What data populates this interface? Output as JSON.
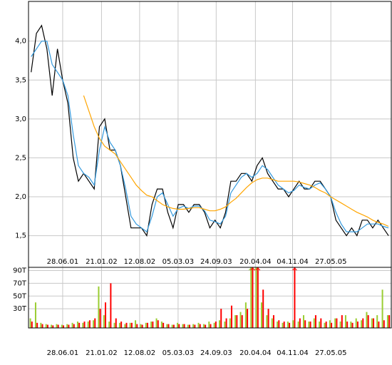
{
  "chart_data": [
    {
      "type": "line",
      "x": [
        "11.01.01",
        "08.02.01",
        "08.03.01",
        "05.04.01",
        "03.05.01",
        "31.05.01",
        "28.06.01",
        "26.07.01",
        "23.08.01",
        "20.09.01",
        "18.10.01",
        "15.11.01",
        "13.12.01",
        "10.01.02",
        "07.02.02",
        "07.03.02",
        "04.04.02",
        "02.05.02",
        "30.05.02",
        "27.06.02",
        "25.07.02",
        "22.08.02",
        "19.09.02",
        "17.10.02",
        "14.11.02",
        "12.12.02",
        "09.01.03",
        "06.02.03",
        "06.03.03",
        "03.04.03",
        "01.05.03",
        "29.05.03",
        "26.06.03",
        "24.07.03",
        "21.08.03",
        "18.09.03",
        "16.10.03",
        "13.11.03",
        "11.12.03",
        "08.01.04",
        "05.02.04",
        "04.03.04",
        "01.04.04",
        "29.04.04",
        "27.05.04",
        "24.06.04",
        "22.07.04",
        "19.08.04",
        "16.09.04",
        "14.10.04",
        "11.11.04",
        "09.12.04",
        "06.01.05",
        "03.02.05",
        "03.03.05",
        "31.03.05",
        "28.04.05",
        "26.05.05",
        "23.06.05",
        "21.07.05",
        "18.08.05",
        "15.09.05",
        "13.10.05",
        "10.11.05",
        "08.12.05",
        "05.01.06",
        "02.02.06",
        "02.03.06",
        "30.03.06"
      ],
      "series": [
        {
          "color": "#000000",
          "values": [
            3.6,
            4.1,
            4.2,
            3.9,
            3.3,
            3.9,
            3.5,
            3.2,
            2.5,
            2.2,
            2.3,
            2.2,
            2.1,
            2.9,
            3.0,
            2.6,
            2.6,
            2.4,
            2.0,
            1.6,
            1.6,
            1.6,
            1.5,
            1.9,
            2.1,
            2.1,
            1.8,
            1.6,
            1.9,
            1.9,
            1.8,
            1.9,
            1.9,
            1.8,
            1.6,
            1.7,
            1.6,
            1.8,
            2.2,
            2.2,
            2.3,
            2.3,
            2.2,
            2.4,
            2.5,
            2.3,
            2.2,
            2.1,
            2.1,
            2.0,
            2.1,
            2.2,
            2.1,
            2.1,
            2.2,
            2.2,
            2.1,
            2.0,
            1.7,
            1.6,
            1.5,
            1.6,
            1.5,
            1.7,
            1.7,
            1.6,
            1.7,
            1.6,
            1.5
          ]
        },
        {
          "color": "#3399dd",
          "values": [
            3.8,
            3.9,
            4.0,
            4.0,
            3.7,
            3.6,
            3.5,
            3.3,
            2.8,
            2.4,
            2.3,
            2.25,
            2.15,
            2.6,
            2.9,
            2.7,
            2.6,
            2.4,
            2.1,
            1.75,
            1.65,
            1.6,
            1.55,
            1.75,
            2.0,
            2.05,
            1.9,
            1.75,
            1.85,
            1.88,
            1.85,
            1.88,
            1.88,
            1.82,
            1.7,
            1.68,
            1.65,
            1.75,
            2.05,
            2.15,
            2.25,
            2.3,
            2.25,
            2.3,
            2.4,
            2.35,
            2.25,
            2.15,
            2.1,
            2.05,
            2.08,
            2.15,
            2.12,
            2.1,
            2.15,
            2.18,
            2.1,
            2.0,
            1.8,
            1.65,
            1.55,
            1.55,
            1.55,
            1.6,
            1.65,
            1.65,
            1.65,
            1.62,
            1.6
          ]
        },
        {
          "color": "#ffa500",
          "values": [
            null,
            null,
            null,
            null,
            null,
            null,
            null,
            null,
            null,
            null,
            3.3,
            3.1,
            2.9,
            2.75,
            2.65,
            2.6,
            2.55,
            2.45,
            2.35,
            2.25,
            2.15,
            2.08,
            2.02,
            2.0,
            1.95,
            1.9,
            1.87,
            1.85,
            1.84,
            1.84,
            1.85,
            1.86,
            1.86,
            1.84,
            1.82,
            1.82,
            1.84,
            1.87,
            1.93,
            1.98,
            2.05,
            2.12,
            2.18,
            2.22,
            2.24,
            2.24,
            2.22,
            2.2,
            2.2,
            2.2,
            2.2,
            2.19,
            2.17,
            2.15,
            2.12,
            2.08,
            2.05,
            2.0,
            1.96,
            1.92,
            1.88,
            1.84,
            1.8,
            1.77,
            1.74,
            1.7,
            1.67,
            1.65,
            1.62
          ]
        }
      ],
      "xlim": [
        "28.12.00",
        "14.04.06"
      ],
      "xticks": [
        "28.06.01",
        "21.01.02",
        "12.08.02",
        "05.03.03",
        "24.09.03",
        "20.04.04",
        "04.11.04",
        "27.05.05"
      ],
      "ylim": [
        1.02,
        4.51
      ],
      "yticks": [
        {
          "value": 1.5,
          "label": "1,5"
        },
        {
          "value": 2,
          "label": "2,0"
        },
        {
          "value": 2.5,
          "label": "2,5"
        },
        {
          "value": 3,
          "label": "3,0"
        },
        {
          "value": 3.5,
          "label": "3,5"
        },
        {
          "value": 4,
          "label": "4,0"
        }
      ],
      "grid": true
    },
    {
      "type": "bar",
      "x": [
        "11.01.01",
        "08.02.01",
        "08.03.01",
        "05.04.01",
        "03.05.01",
        "31.05.01",
        "28.06.01",
        "26.07.01",
        "23.08.01",
        "20.09.01",
        "18.10.01",
        "15.11.01",
        "13.12.01",
        "10.01.02",
        "07.02.02",
        "07.03.02",
        "04.04.02",
        "02.05.02",
        "30.05.02",
        "27.06.02",
        "25.07.02",
        "22.08.02",
        "19.09.02",
        "17.10.02",
        "14.11.02",
        "12.12.02",
        "09.01.03",
        "06.02.03",
        "06.03.03",
        "03.04.03",
        "01.05.03",
        "29.05.03",
        "26.06.03",
        "24.07.03",
        "21.08.03",
        "18.09.03",
        "16.10.03",
        "13.11.03",
        "11.12.03",
        "08.01.04",
        "05.02.04",
        "04.03.04",
        "01.04.04",
        "29.04.04",
        "27.05.04",
        "24.06.04",
        "22.07.04",
        "19.08.04",
        "16.09.04",
        "14.10.04",
        "11.11.04",
        "09.12.04",
        "06.01.05",
        "03.02.05",
        "03.03.05",
        "31.03.05",
        "28.04.05",
        "26.05.05",
        "23.06.05",
        "21.07.05",
        "18.08.05",
        "15.09.05",
        "13.10.05",
        "10.11.05",
        "08.12.05",
        "05.01.06",
        "02.02.06",
        "02.03.06",
        "30.03.06"
      ],
      "series": [
        {
          "color": "#9acd32",
          "values": [
            15,
            40,
            8,
            6,
            5,
            6,
            5,
            6,
            8,
            10,
            8,
            10,
            12,
            65,
            20,
            10,
            8,
            8,
            6,
            8,
            12,
            6,
            8,
            10,
            15,
            10,
            6,
            5,
            8,
            6,
            5,
            6,
            8,
            6,
            10,
            8,
            12,
            10,
            15,
            20,
            25,
            40,
            100,
            100,
            40,
            20,
            15,
            10,
            8,
            10,
            12,
            10,
            20,
            10,
            15,
            10,
            8,
            12,
            15,
            10,
            20,
            10,
            15,
            12,
            25,
            15,
            20,
            60,
            20
          ]
        },
        {
          "color": "#ff0000",
          "values": [
            10,
            8,
            6,
            5,
            4,
            5,
            4,
            5,
            6,
            8,
            10,
            12,
            15,
            30,
            40,
            70,
            15,
            10,
            8,
            8,
            6,
            5,
            8,
            10,
            12,
            8,
            6,
            5,
            6,
            6,
            5,
            5,
            6,
            5,
            6,
            10,
            30,
            15,
            35,
            20,
            20,
            30,
            100,
            100,
            60,
            30,
            20,
            12,
            10,
            8,
            100,
            15,
            12,
            10,
            20,
            15,
            10,
            8,
            15,
            20,
            10,
            8,
            10,
            15,
            20,
            15,
            10,
            12,
            20
          ]
        }
      ],
      "xlim": [
        "28.12.00",
        "14.04.06"
      ],
      "xticks": [
        "28.06.01",
        "21.01.02",
        "12.08.02",
        "05.03.03",
        "24.09.03",
        "20.04.04",
        "04.11.04",
        "27.05.05"
      ],
      "ylim": [
        0,
        95
      ],
      "yticks": [
        {
          "value": 30,
          "label": "30T"
        },
        {
          "value": 50,
          "label": "50T"
        },
        {
          "value": 70,
          "label": "70T"
        },
        {
          "value": 90,
          "label": "90T"
        }
      ],
      "grid": true
    }
  ]
}
